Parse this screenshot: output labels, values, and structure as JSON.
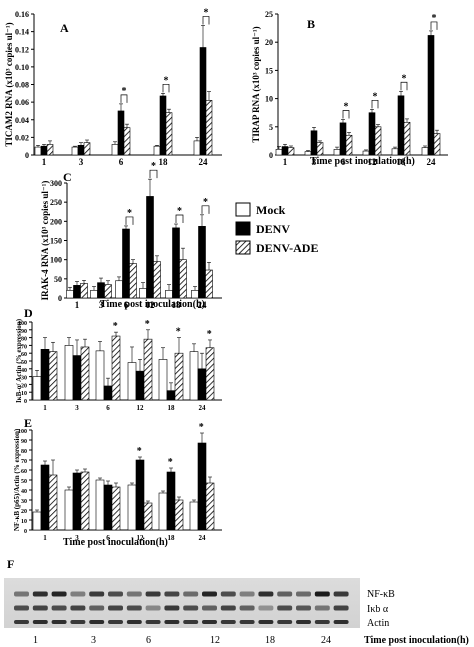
{
  "colors": {
    "mock": "#ffffff",
    "denv": "#000000",
    "ade_hatch": "#000000",
    "axis": "#000000"
  },
  "legend": {
    "placement": "right of panel C",
    "items": [
      {
        "label": "Mock",
        "style": "white"
      },
      {
        "label": "DENV",
        "style": "black"
      },
      {
        "label": "DENV-ADE",
        "style": "hatched"
      }
    ]
  },
  "chart_data": [
    {
      "panel": "A",
      "type": "bar",
      "ylabel": "TICAM2 RNA (x10³ copies ul⁻¹)",
      "xlabel": "",
      "categories": [
        "1",
        "3",
        "6",
        "18",
        "24"
      ],
      "ylim": [
        0,
        0.16
      ],
      "yticks": [
        "0",
        "0.02",
        "0.04",
        "0.06",
        "0.08",
        "0.10",
        "0.12",
        "0.14",
        "0.16"
      ],
      "series": [
        {
          "name": "Mock",
          "values": [
            0.009,
            0.009,
            0.012,
            0.01,
            0.016
          ]
        },
        {
          "name": "DENV",
          "values": [
            0.01,
            0.011,
            0.05,
            0.067,
            0.122
          ]
        },
        {
          "name": "DENV-ADE",
          "values": [
            0.012,
            0.014,
            0.031,
            0.048,
            0.062
          ]
        }
      ],
      "errors": [
        [
          0.002,
          0.001,
          0.003,
          0.001,
          0.004
        ],
        [
          0.002,
          0.003,
          0.008,
          0.003,
          0.025
        ],
        [
          0.004,
          0.003,
          0.004,
          0.004,
          0.01
        ]
      ],
      "significant": [
        2,
        3,
        4
      ]
    },
    {
      "panel": "B",
      "type": "bar",
      "ylabel": "TIRAP RNA (x10³ copies ul⁻¹)",
      "xlabel": "Time post inoculation(h)",
      "categories": [
        "1",
        "3",
        "6",
        "12",
        "18",
        "24"
      ],
      "ylim": [
        0,
        25
      ],
      "yticks": [
        "0",
        "5",
        "10",
        "15",
        "20",
        "25"
      ],
      "series": [
        {
          "name": "Mock",
          "values": [
            1.0,
            0.6,
            1.0,
            0.7,
            1.1,
            1.3
          ]
        },
        {
          "name": "DENV",
          "values": [
            1.5,
            4.3,
            5.7,
            7.5,
            10.5,
            21.2
          ]
        },
        {
          "name": "DENV-ADE",
          "values": [
            1.3,
            2.2,
            3.5,
            5.0,
            5.8,
            3.8
          ]
        }
      ],
      "errors": [
        [
          0.5,
          0.2,
          0.4,
          0.2,
          0.3,
          0.3
        ],
        [
          0.4,
          0.6,
          0.6,
          0.6,
          0.8,
          0.8
        ],
        [
          0.3,
          0.3,
          0.5,
          0.4,
          0.6,
          0.6
        ]
      ],
      "significant": [
        2,
        3,
        4,
        5
      ]
    },
    {
      "panel": "C",
      "type": "bar",
      "ylabel": "IRAK-4 RNA (x10³ copies ul⁻¹)",
      "xlabel": "Time post inoculation(h)",
      "categories": [
        "1",
        "3",
        "6",
        "12",
        "18",
        "24"
      ],
      "ylim": [
        0,
        300
      ],
      "yticks": [
        "0",
        "50",
        "100",
        "150",
        "200",
        "250",
        "300"
      ],
      "series": [
        {
          "name": "Mock",
          "values": [
            20,
            20,
            45,
            25,
            20,
            20
          ]
        },
        {
          "name": "DENV",
          "values": [
            33,
            40,
            180,
            265,
            183,
            187
          ]
        },
        {
          "name": "DENV-ADE",
          "values": [
            38,
            35,
            90,
            95,
            100,
            73
          ]
        }
      ],
      "errors": [
        [
          8,
          10,
          10,
          15,
          15,
          10
        ],
        [
          10,
          12,
          8,
          45,
          10,
          30
        ],
        [
          8,
          10,
          10,
          15,
          30,
          20
        ]
      ],
      "significant": [
        2,
        3,
        4,
        5
      ]
    },
    {
      "panel": "D",
      "type": "bar",
      "ylabel": "IκB-α/ Actin (% expression)",
      "xlabel": "",
      "categories": [
        "1",
        "3",
        "6",
        "12",
        "18",
        "24"
      ],
      "ylim": [
        0,
        100
      ],
      "yticks": [
        "0",
        "10",
        "20",
        "30",
        "40",
        "50",
        "60",
        "70",
        "80",
        "90",
        "100"
      ],
      "series": [
        {
          "name": "Mock",
          "values": [
            30,
            70,
            63,
            48,
            52,
            62
          ]
        },
        {
          "name": "DENV",
          "values": [
            65,
            57,
            18,
            37,
            12,
            40
          ]
        },
        {
          "name": "DENV-ADE",
          "values": [
            62,
            68,
            82,
            78,
            60,
            67
          ]
        }
      ],
      "errors": [
        [
          8,
          10,
          12,
          20,
          15,
          10
        ],
        [
          15,
          20,
          10,
          15,
          10,
          20
        ],
        [
          12,
          10,
          5,
          12,
          20,
          10
        ]
      ],
      "significant": [
        2,
        3,
        4,
        5
      ]
    },
    {
      "panel": "E",
      "type": "bar",
      "ylabel": "NF-κB (p65)/Actin (% expression)",
      "xlabel": "Time post inoculation(h)",
      "categories": [
        "1",
        "3",
        "6",
        "12",
        "18",
        "24"
      ],
      "ylim": [
        0,
        100
      ],
      "yticks": [
        "0",
        "10",
        "20",
        "30",
        "40",
        "50",
        "60",
        "70",
        "80",
        "90",
        "100"
      ],
      "series": [
        {
          "name": "Mock",
          "values": [
            18,
            40,
            50,
            45,
            37,
            28
          ]
        },
        {
          "name": "DENV",
          "values": [
            65,
            57,
            45,
            70,
            58,
            87
          ]
        },
        {
          "name": "DENV-ADE",
          "values": [
            55,
            58,
            43,
            27,
            30,
            47
          ]
        }
      ],
      "errors": [
        [
          2,
          3,
          2,
          2,
          2,
          2
        ],
        [
          4,
          3,
          4,
          3,
          4,
          10
        ],
        [
          15,
          3,
          4,
          2,
          3,
          6
        ]
      ],
      "significant": [
        3,
        4,
        5
      ]
    }
  ],
  "blot": {
    "panel": "F",
    "rows": [
      "NF-κB",
      "Iκb α",
      "Actin"
    ],
    "lanes_per_time": 3,
    "times": [
      "1",
      "3",
      "6",
      "12",
      "18",
      "24"
    ],
    "xlabel": "Time post inoculation(h)"
  }
}
